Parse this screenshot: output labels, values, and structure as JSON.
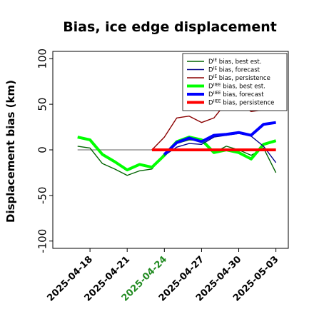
{
  "chart_data": {
    "type": "line",
    "title": "Bias, ice edge displacement",
    "ylabel": "Displacement bias (km)",
    "xlabel": "",
    "ylim": [
      -108,
      108
    ],
    "yticks": [
      -100,
      -50,
      0,
      50,
      100
    ],
    "x_dates": [
      "2025-04-16",
      "2025-04-17",
      "2025-04-18",
      "2025-04-19",
      "2025-04-20",
      "2025-04-21",
      "2025-04-22",
      "2025-04-23",
      "2025-04-24",
      "2025-04-25",
      "2025-04-26",
      "2025-04-27",
      "2025-04-28",
      "2025-04-29",
      "2025-04-30",
      "2025-05-01",
      "2025-05-02",
      "2025-05-03"
    ],
    "xlim": [
      "2025-04-15",
      "2025-05-04"
    ],
    "xtick_labels": [
      {
        "date": "2025-04-18",
        "label": "2025-04-18",
        "color": "#000000"
      },
      {
        "date": "2025-04-21",
        "label": "2025-04-21",
        "color": "#000000"
      },
      {
        "date": "2025-04-24",
        "label": "2025-04-24",
        "color": "#228B22"
      },
      {
        "date": "2025-04-27",
        "label": "2025-04-27",
        "color": "#000000"
      },
      {
        "date": "2025-04-30",
        "label": "2025-04-30",
        "color": "#000000"
      },
      {
        "date": "2025-05-03",
        "label": "2025-05-03",
        "color": "#000000"
      }
    ],
    "legend_position": "top-right",
    "grid": false,
    "series": [
      {
        "name_main": "D",
        "name_sup": "IE",
        "name_rest": " bias, best est.",
        "color": "#006400",
        "width": 1.4,
        "x": [
          "2025-04-17",
          "2025-04-18",
          "2025-04-19",
          "2025-04-20",
          "2025-04-21",
          "2025-04-22",
          "2025-04-23",
          "2025-04-24",
          "2025-04-25",
          "2025-04-26",
          "2025-04-27",
          "2025-04-28",
          "2025-04-29",
          "2025-04-30",
          "2025-05-01",
          "2025-05-02",
          "2025-05-03"
        ],
        "values": [
          4,
          2,
          -15,
          -21,
          -28,
          -23,
          -21,
          -4,
          7,
          11,
          10,
          -3,
          4,
          0,
          -6,
          2,
          -25
        ]
      },
      {
        "name_main": "D",
        "name_sup": "IE",
        "name_rest": " bias, forecast",
        "color": "#00008B",
        "width": 1.4,
        "x": [
          "2025-04-24",
          "2025-04-25",
          "2025-04-26",
          "2025-04-27",
          "2025-04-28",
          "2025-04-29",
          "2025-04-30",
          "2025-05-01",
          "2025-05-02",
          "2025-05-03"
        ],
        "values": [
          -6,
          3,
          7,
          6,
          14,
          16,
          18,
          15,
          4,
          -14
        ]
      },
      {
        "name_main": "D",
        "name_sup": "IE",
        "name_rest": " bias, persistence",
        "color": "#8B0000",
        "width": 1.4,
        "x": [
          "2025-04-23",
          "2025-04-24",
          "2025-04-25",
          "2025-04-26",
          "2025-04-27",
          "2025-04-28",
          "2025-04-29",
          "2025-04-30",
          "2025-05-01",
          "2025-05-02",
          "2025-05-03"
        ],
        "values": [
          0,
          14,
          35,
          37,
          30,
          35,
          52,
          52,
          42,
          44,
          50
        ]
      },
      {
        "name_main": "D",
        "name_sup": "IIEE",
        "name_rest": " bias, best est.",
        "color": "#00FF00",
        "width": 4,
        "x": [
          "2025-04-17",
          "2025-04-18",
          "2025-04-19",
          "2025-04-20",
          "2025-04-21",
          "2025-04-22",
          "2025-04-23",
          "2025-04-24",
          "2025-04-25",
          "2025-04-26",
          "2025-04-27",
          "2025-04-28",
          "2025-04-29",
          "2025-04-30",
          "2025-05-01",
          "2025-05-02",
          "2025-05-03"
        ],
        "values": [
          14,
          11,
          -5,
          -13,
          -22,
          -16,
          -19,
          -6,
          9,
          14,
          11,
          -3,
          0,
          -3,
          -10,
          6,
          10
        ]
      },
      {
        "name_main": "D",
        "name_sup": "IIEE",
        "name_rest": " bias, forecast",
        "color": "#0000FF",
        "width": 4,
        "x": [
          "2025-04-24",
          "2025-04-25",
          "2025-04-26",
          "2025-04-27",
          "2025-04-28",
          "2025-04-29",
          "2025-04-30",
          "2025-05-01",
          "2025-05-02",
          "2025-05-03"
        ],
        "values": [
          -5,
          8,
          13,
          9,
          16,
          17,
          19,
          16,
          28,
          30
        ]
      },
      {
        "name_main": "D",
        "name_sup": "IIEE",
        "name_rest": " bias, persistence",
        "color": "#FF0000",
        "width": 4,
        "x": [
          "2025-04-23",
          "2025-04-24",
          "2025-04-25",
          "2025-04-26",
          "2025-04-27",
          "2025-04-28",
          "2025-04-29",
          "2025-04-30",
          "2025-05-01",
          "2025-05-02",
          "2025-05-03"
        ],
        "values": [
          0,
          0,
          0,
          0,
          0,
          0,
          0,
          0,
          0,
          0,
          0
        ]
      }
    ],
    "zero_line": {
      "y": 0,
      "x_start": "2025-04-17",
      "x_end": "2025-05-03",
      "color": "#808080"
    }
  }
}
